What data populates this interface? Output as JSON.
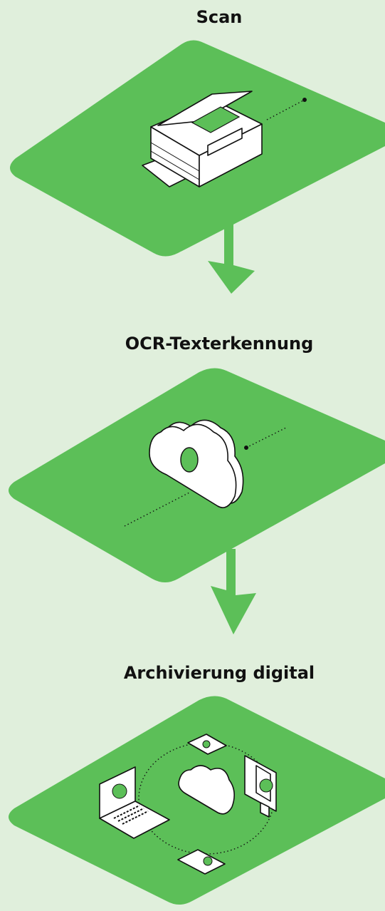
{
  "steps": [
    {
      "title": "Scan"
    },
    {
      "title": "OCR-Texterkennung"
    },
    {
      "title": "Archivierung digital"
    }
  ]
}
